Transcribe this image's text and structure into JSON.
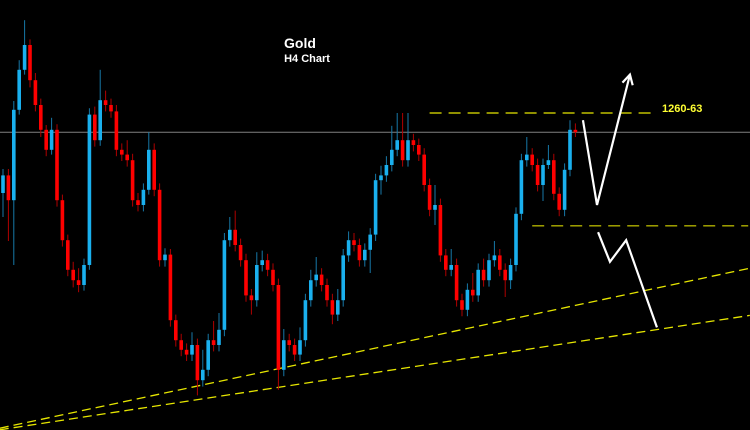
{
  "chart_data": {
    "type": "candlestick",
    "title": "Gold",
    "subtitle": "H4 Chart",
    "xlabel": "",
    "ylabel": "",
    "grid": false,
    "colors": {
      "background": "#000000",
      "up": "#1ab0ee",
      "down": "#ff0000",
      "level": "#e6e600",
      "current_price": "#808080",
      "arrows": "#ffffff"
    },
    "candles_ohlc": [
      [
        1250.0,
        1253.0,
        1247.0,
        1252.2
      ],
      [
        1252.2,
        1253.0,
        1244.0,
        1249.1
      ],
      [
        1249.1,
        1261.5,
        1241.0,
        1260.4
      ],
      [
        1260.4,
        1266.6,
        1259.8,
        1265.4
      ],
      [
        1265.4,
        1271.6,
        1264.8,
        1268.5
      ],
      [
        1268.5,
        1269.2,
        1263.2,
        1264.1
      ],
      [
        1264.1,
        1265.0,
        1260.2,
        1261.0
      ],
      [
        1261.0,
        1261.8,
        1257.0,
        1257.9
      ],
      [
        1257.9,
        1258.5,
        1254.6,
        1255.4
      ],
      [
        1255.4,
        1259.4,
        1254.8,
        1257.9
      ],
      [
        1257.9,
        1258.6,
        1248.3,
        1249.1
      ],
      [
        1249.1,
        1249.8,
        1243.3,
        1244.1
      ],
      [
        1244.1,
        1244.8,
        1239.6,
        1240.4
      ],
      [
        1240.4,
        1241.4,
        1238.2,
        1239.1
      ],
      [
        1239.1,
        1240.6,
        1237.6,
        1238.5
      ],
      [
        1238.5,
        1241.8,
        1237.8,
        1241.0
      ],
      [
        1241.0,
        1260.6,
        1240.4,
        1259.8
      ],
      [
        1259.8,
        1260.8,
        1255.8,
        1256.6
      ],
      [
        1256.6,
        1265.4,
        1255.9,
        1261.6
      ],
      [
        1261.6,
        1262.8,
        1260.2,
        1261.0
      ],
      [
        1261.0,
        1261.8,
        1259.4,
        1260.2
      ],
      [
        1260.2,
        1261.0,
        1254.6,
        1255.4
      ],
      [
        1255.4,
        1256.2,
        1254.0,
        1254.8
      ],
      [
        1254.8,
        1256.6,
        1253.3,
        1254.1
      ],
      [
        1254.1,
        1254.9,
        1248.3,
        1249.1
      ],
      [
        1249.1,
        1250.0,
        1247.7,
        1248.5
      ],
      [
        1248.5,
        1251.2,
        1247.7,
        1250.4
      ],
      [
        1250.4,
        1257.6,
        1249.8,
        1255.4
      ],
      [
        1255.4,
        1256.2,
        1249.6,
        1250.4
      ],
      [
        1250.4,
        1251.2,
        1240.8,
        1241.6
      ],
      [
        1241.6,
        1243.1,
        1240.8,
        1242.3
      ],
      [
        1242.3,
        1243.0,
        1233.3,
        1234.1
      ],
      [
        1234.1,
        1234.8,
        1230.8,
        1231.6
      ],
      [
        1231.6,
        1232.4,
        1229.6,
        1230.4
      ],
      [
        1230.4,
        1231.2,
        1229.0,
        1229.8
      ],
      [
        1229.8,
        1232.6,
        1229.0,
        1231.0
      ],
      [
        1231.0,
        1231.8,
        1224.7,
        1226.6
      ],
      [
        1226.6,
        1230.4,
        1225.8,
        1227.9
      ],
      [
        1227.9,
        1232.4,
        1227.1,
        1231.6
      ],
      [
        1231.6,
        1234.0,
        1230.2,
        1231.0
      ],
      [
        1231.0,
        1235.0,
        1230.2,
        1232.9
      ],
      [
        1232.9,
        1245.0,
        1232.1,
        1244.1
      ],
      [
        1244.1,
        1247.0,
        1243.3,
        1245.4
      ],
      [
        1245.4,
        1247.8,
        1242.7,
        1243.5
      ],
      [
        1243.5,
        1244.3,
        1240.8,
        1241.6
      ],
      [
        1241.6,
        1242.4,
        1236.4,
        1237.2
      ],
      [
        1237.2,
        1238.0,
        1234.8,
        1236.6
      ],
      [
        1236.6,
        1242.6,
        1235.8,
        1241.0
      ],
      [
        1241.0,
        1242.8,
        1240.2,
        1241.6
      ],
      [
        1241.6,
        1242.4,
        1239.6,
        1240.4
      ],
      [
        1240.4,
        1241.2,
        1237.7,
        1238.5
      ],
      [
        1238.5,
        1239.3,
        1225.4,
        1227.9
      ],
      [
        1227.9,
        1233.0,
        1227.1,
        1231.6
      ],
      [
        1231.6,
        1232.4,
        1230.2,
        1231.0
      ],
      [
        1231.0,
        1231.8,
        1229.0,
        1229.8
      ],
      [
        1229.8,
        1233.2,
        1229.0,
        1231.6
      ],
      [
        1231.6,
        1237.4,
        1230.8,
        1236.6
      ],
      [
        1236.6,
        1240.4,
        1235.8,
        1239.1
      ],
      [
        1239.1,
        1242.0,
        1238.3,
        1239.8
      ],
      [
        1239.8,
        1240.6,
        1237.7,
        1238.5
      ],
      [
        1238.5,
        1239.3,
        1235.8,
        1236.6
      ],
      [
        1236.6,
        1237.4,
        1233.6,
        1234.8
      ],
      [
        1234.8,
        1238.0,
        1234.0,
        1236.6
      ],
      [
        1236.6,
        1243.0,
        1235.8,
        1242.2
      ],
      [
        1242.2,
        1245.2,
        1241.4,
        1244.1
      ],
      [
        1244.1,
        1245.0,
        1242.7,
        1243.5
      ],
      [
        1243.5,
        1244.3,
        1240.8,
        1241.6
      ],
      [
        1241.6,
        1243.7,
        1240.8,
        1242.9
      ],
      [
        1242.9,
        1245.6,
        1240.0,
        1244.8
      ],
      [
        1244.8,
        1252.4,
        1244.0,
        1251.6
      ],
      [
        1251.6,
        1253.4,
        1249.8,
        1252.2
      ],
      [
        1252.2,
        1254.6,
        1251.4,
        1253.5
      ],
      [
        1253.5,
        1258.4,
        1252.7,
        1255.4
      ],
      [
        1255.4,
        1260.0,
        1254.6,
        1256.6
      ],
      [
        1256.6,
        1260.0,
        1253.3,
        1254.1
      ],
      [
        1254.1,
        1260.0,
        1253.3,
        1256.6
      ],
      [
        1256.6,
        1257.4,
        1255.2,
        1256.0
      ],
      [
        1256.0,
        1256.8,
        1254.0,
        1254.8
      ],
      [
        1254.8,
        1255.6,
        1250.2,
        1251.0
      ],
      [
        1251.0,
        1251.8,
        1247.1,
        1247.9
      ],
      [
        1247.9,
        1251.0,
        1246.0,
        1248.5
      ],
      [
        1248.5,
        1249.3,
        1241.4,
        1242.2
      ],
      [
        1242.2,
        1243.0,
        1239.6,
        1240.4
      ],
      [
        1240.4,
        1243.0,
        1239.6,
        1241.0
      ],
      [
        1241.0,
        1241.8,
        1235.8,
        1236.6
      ],
      [
        1236.6,
        1237.4,
        1234.6,
        1235.4
      ],
      [
        1235.4,
        1238.7,
        1234.6,
        1237.9
      ],
      [
        1237.9,
        1240.0,
        1236.4,
        1237.2
      ],
      [
        1237.2,
        1241.2,
        1236.4,
        1240.4
      ],
      [
        1240.4,
        1241.8,
        1238.3,
        1239.1
      ],
      [
        1239.1,
        1242.4,
        1238.3,
        1241.6
      ],
      [
        1241.6,
        1244.0,
        1240.8,
        1242.2
      ],
      [
        1242.2,
        1243.0,
        1239.6,
        1240.4
      ],
      [
        1240.4,
        1241.2,
        1237.0,
        1239.1
      ],
      [
        1239.1,
        1241.8,
        1238.0,
        1241.0
      ],
      [
        1241.0,
        1248.2,
        1240.2,
        1247.4
      ],
      [
        1247.4,
        1254.9,
        1246.6,
        1254.1
      ],
      [
        1254.1,
        1257.0,
        1253.3,
        1254.8
      ],
      [
        1254.8,
        1255.6,
        1252.7,
        1253.5
      ],
      [
        1253.5,
        1254.3,
        1250.2,
        1251.0
      ],
      [
        1251.0,
        1254.3,
        1249.0,
        1253.5
      ],
      [
        1253.5,
        1256.0,
        1253.0,
        1254.1
      ],
      [
        1254.1,
        1254.9,
        1249.1,
        1249.9
      ],
      [
        1249.9,
        1250.7,
        1247.1,
        1247.9
      ],
      [
        1247.9,
        1253.7,
        1247.1,
        1252.9
      ],
      [
        1252.9,
        1259.1,
        1252.1,
        1257.9
      ],
      [
        1257.9,
        1258.7,
        1257.0,
        1257.6
      ]
    ],
    "current_price": 1257.6,
    "levels": [
      {
        "label": "1260-63",
        "price": 1260.0,
        "from_candle": 79,
        "to_candle": 120
      },
      {
        "label": "",
        "price": 1245.9,
        "from_candle": 98,
        "to_candle": 138
      }
    ],
    "trendlines": [
      {
        "from": [
          -0.6,
          1220.6
        ],
        "to": [
          138.3,
          1240.6
        ]
      },
      {
        "from": [
          -0.6,
          1220.4
        ],
        "to": [
          138.3,
          1234.7
        ]
      }
    ],
    "arrows": [
      {
        "direction": "up",
        "path": [
          [
            107.4,
            1259.1
          ],
          [
            110.0,
            1248.5
          ],
          [
            116.1,
            1264.8
          ]
        ]
      },
      {
        "direction": "down",
        "path": [
          [
            110.2,
            1245.1
          ],
          [
            112.4,
            1241.4
          ],
          [
            115.4,
            1244.1
          ],
          [
            121.1,
            1233.2
          ]
        ]
      }
    ]
  }
}
